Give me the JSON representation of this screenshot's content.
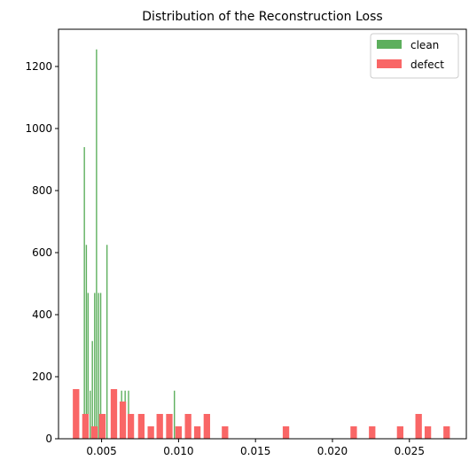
{
  "chart_data": {
    "type": "bar",
    "title": "Distribution of the Reconstruction Loss",
    "xlabel": "",
    "ylabel": "",
    "xlim": [
      0.0022,
      0.0287
    ],
    "ylim": [
      0,
      1320
    ],
    "xticks": [
      0.005,
      0.01,
      0.015,
      0.02,
      0.025
    ],
    "xtick_labels": [
      "0.005",
      "0.010",
      "0.015",
      "0.020",
      "0.025"
    ],
    "yticks": [
      0,
      200,
      400,
      600,
      800,
      1000,
      1200
    ],
    "ytick_labels": [
      "0",
      "200",
      "400",
      "600",
      "800",
      "1000",
      "1200"
    ],
    "grid": false,
    "legend": {
      "position": "top-right"
    },
    "series": [
      {
        "name": "clean",
        "color": "#5daf5d",
        "bar_width": 8e-05,
        "bars": [
          {
            "x": 0.00388,
            "y": 940
          },
          {
            "x": 0.00401,
            "y": 625
          },
          {
            "x": 0.00412,
            "y": 470
          },
          {
            "x": 0.00426,
            "y": 155
          },
          {
            "x": 0.0044,
            "y": 315
          },
          {
            "x": 0.00455,
            "y": 470
          },
          {
            "x": 0.00467,
            "y": 1255
          },
          {
            "x": 0.0048,
            "y": 470
          },
          {
            "x": 0.00494,
            "y": 470
          },
          {
            "x": 0.00535,
            "y": 625
          },
          {
            "x": 0.0058,
            "y": 155
          },
          {
            "x": 0.0063,
            "y": 155
          },
          {
            "x": 0.00653,
            "y": 155
          },
          {
            "x": 0.00675,
            "y": 155
          },
          {
            "x": 0.00973,
            "y": 155
          }
        ]
      },
      {
        "name": "defect",
        "color": "#f96666",
        "bar_width": 0.00042,
        "bars": [
          {
            "x": 0.00334,
            "y": 160
          },
          {
            "x": 0.00395,
            "y": 80
          },
          {
            "x": 0.00453,
            "y": 40
          },
          {
            "x": 0.00505,
            "y": 80
          },
          {
            "x": 0.0058,
            "y": 160
          },
          {
            "x": 0.00638,
            "y": 120
          },
          {
            "x": 0.0069,
            "y": 80
          },
          {
            "x": 0.00758,
            "y": 80
          },
          {
            "x": 0.0082,
            "y": 40
          },
          {
            "x": 0.00878,
            "y": 80
          },
          {
            "x": 0.0094,
            "y": 80
          },
          {
            "x": 0.01,
            "y": 40
          },
          {
            "x": 0.01062,
            "y": 80
          },
          {
            "x": 0.01122,
            "y": 40
          },
          {
            "x": 0.01184,
            "y": 80
          },
          {
            "x": 0.01302,
            "y": 40
          },
          {
            "x": 0.01698,
            "y": 40
          },
          {
            "x": 0.02138,
            "y": 40
          },
          {
            "x": 0.02258,
            "y": 40
          },
          {
            "x": 0.0244,
            "y": 40
          },
          {
            "x": 0.0256,
            "y": 80
          },
          {
            "x": 0.0262,
            "y": 40
          },
          {
            "x": 0.02742,
            "y": 40
          }
        ]
      }
    ]
  }
}
